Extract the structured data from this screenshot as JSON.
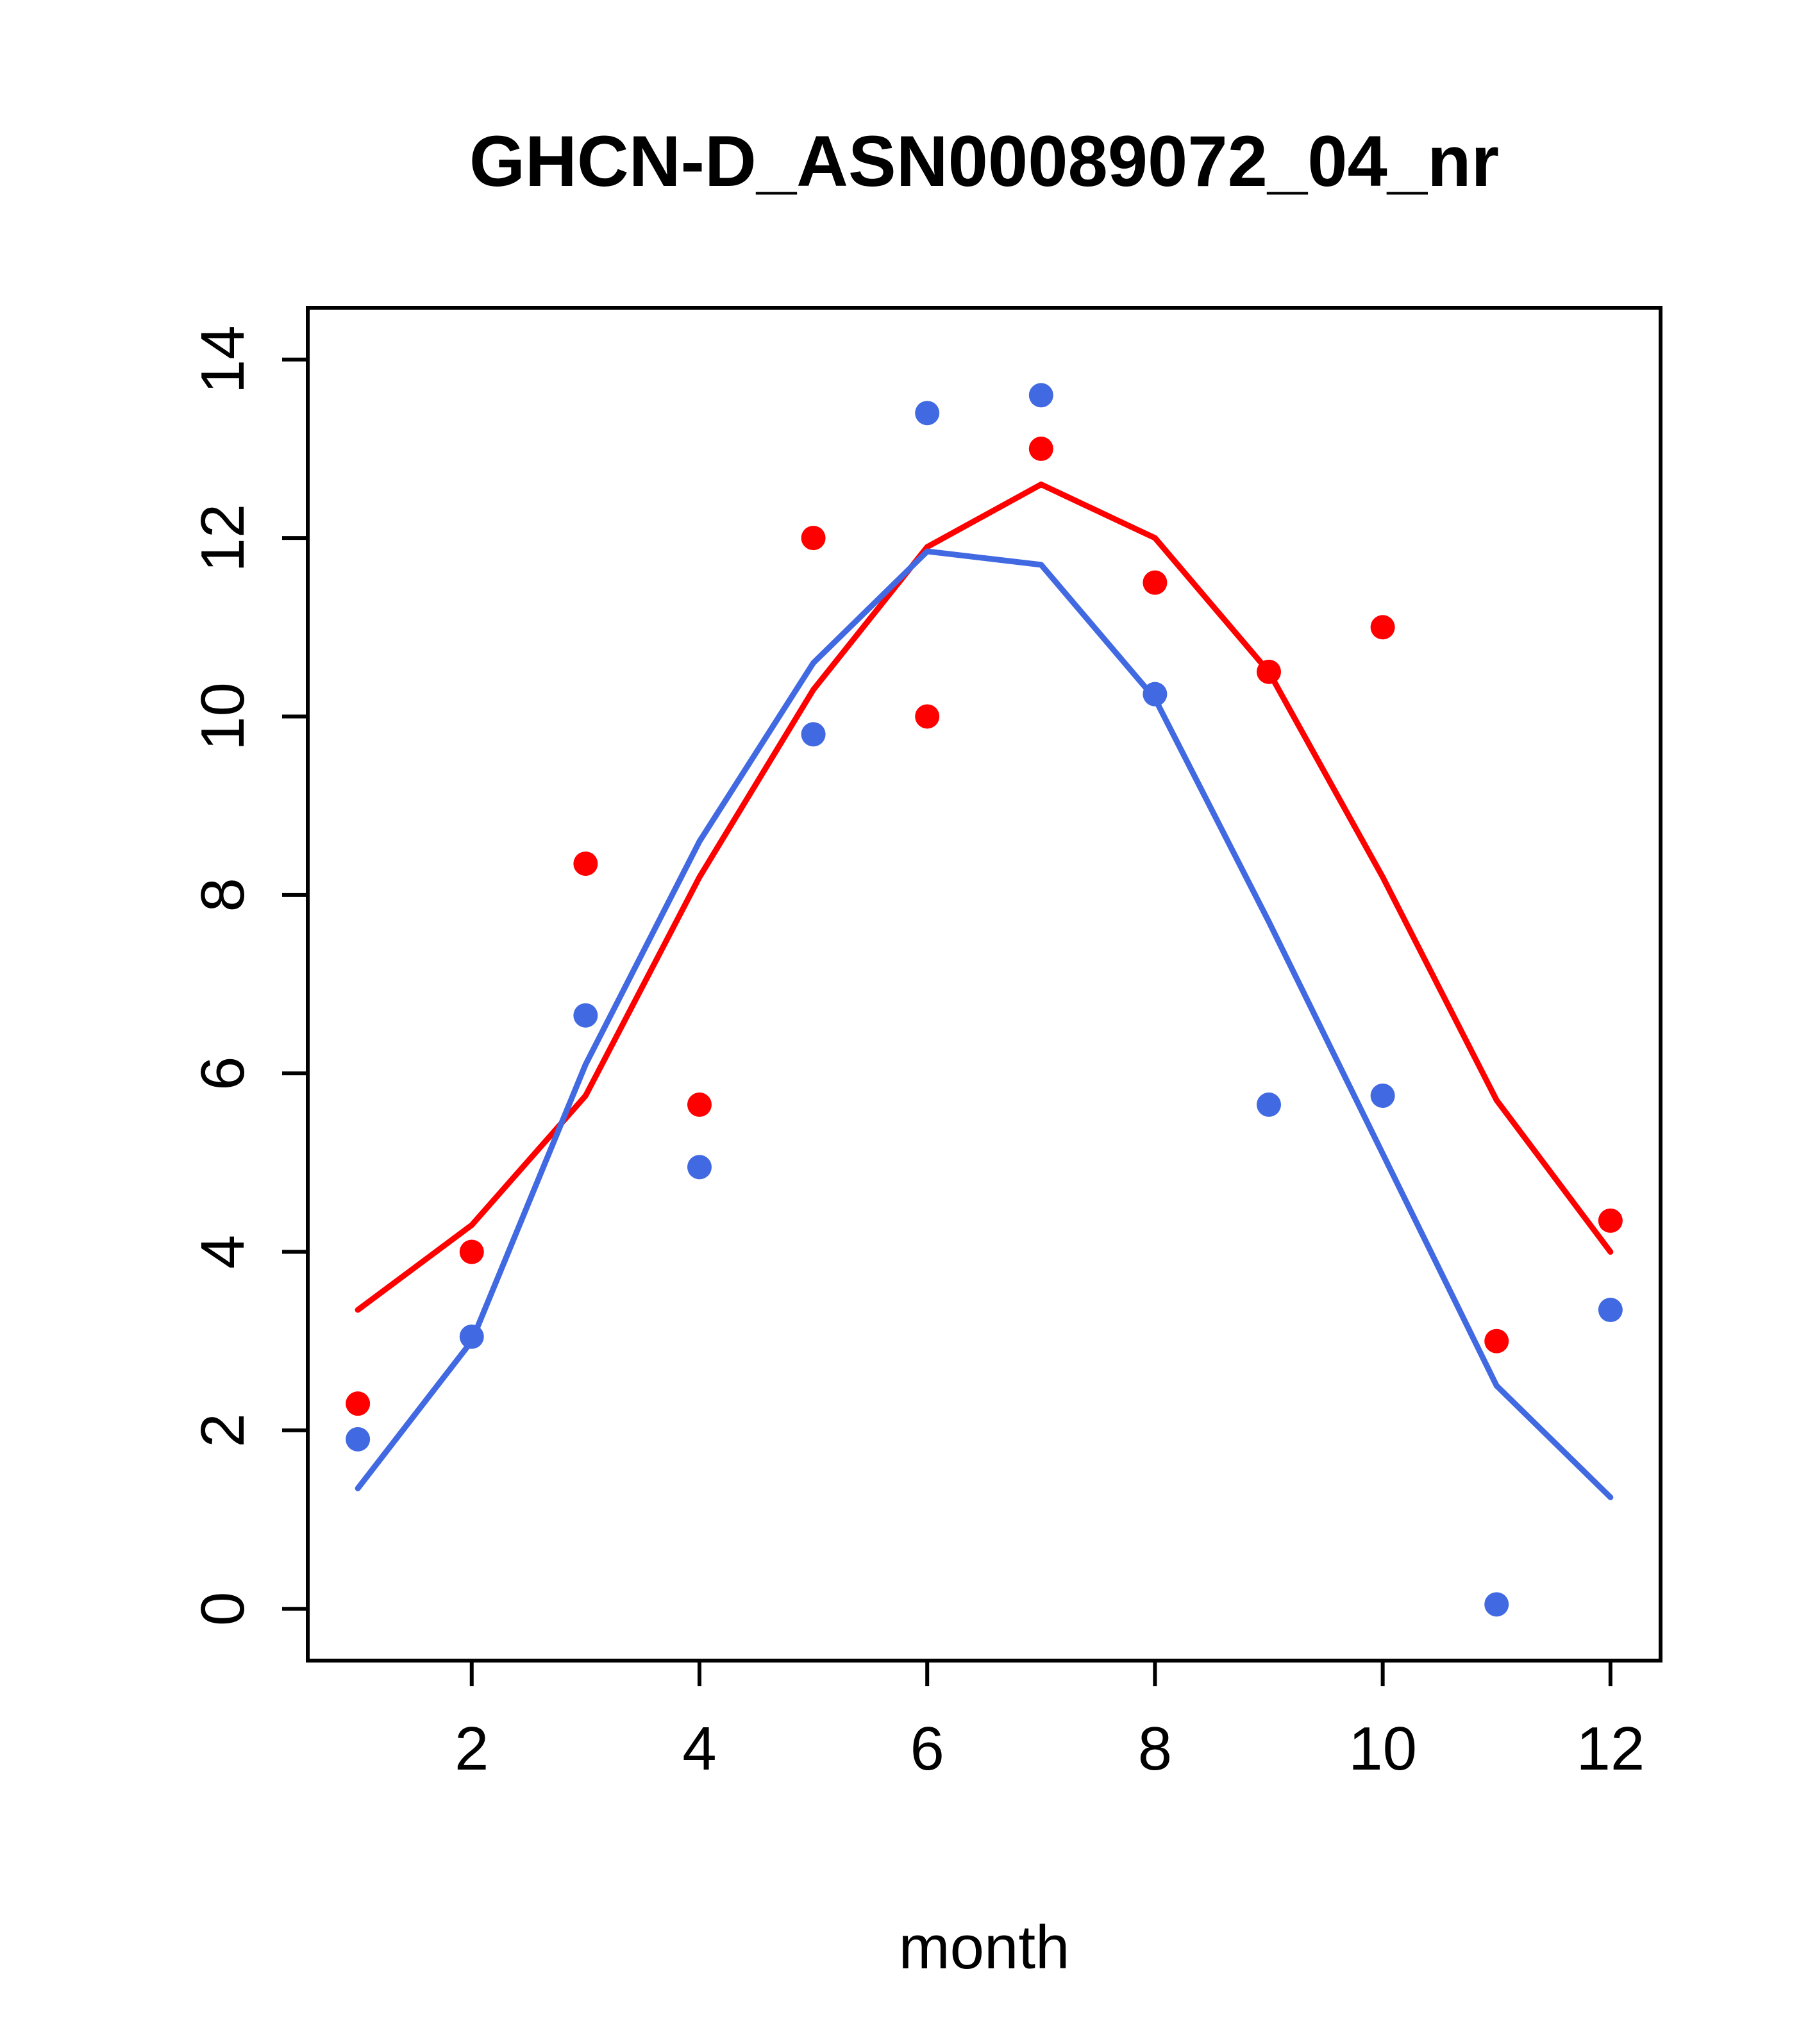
{
  "chart_data": {
    "type": "scatter",
    "title": "GHCN-D_ASN00089072_04_nr",
    "xlabel": "month",
    "ylabel": "",
    "xlim": [
      0.56,
      12.44
    ],
    "ylim": [
      -0.58,
      14.58
    ],
    "xticks": [
      2,
      4,
      6,
      8,
      10,
      12
    ],
    "yticks": [
      0,
      2,
      4,
      6,
      8,
      10,
      12,
      14
    ],
    "grid": false,
    "legend": "none",
    "x": [
      1,
      2,
      3,
      4,
      5,
      6,
      7,
      8,
      9,
      10,
      11,
      12
    ],
    "colors": {
      "red": "#FF0000",
      "blue": "#4169E1",
      "axis": "#000000",
      "background": "#FFFFFF"
    },
    "series": [
      {
        "name": "red-points",
        "type": "scatter",
        "color": "#FF0000",
        "values": [
          2.3,
          4.0,
          8.35,
          5.65,
          12.0,
          10.0,
          13.0,
          11.5,
          10.5,
          11.0,
          3.0,
          4.35
        ]
      },
      {
        "name": "blue-points",
        "type": "scatter",
        "color": "#4169E1",
        "values": [
          1.9,
          3.05,
          6.65,
          4.95,
          9.8,
          13.4,
          13.6,
          10.25,
          5.65,
          5.75,
          0.05,
          3.35
        ]
      },
      {
        "name": "red-fit-line",
        "type": "line",
        "color": "#FF0000",
        "values": [
          3.35,
          4.3,
          5.75,
          8.2,
          10.3,
          11.9,
          12.6,
          12.0,
          10.5,
          8.2,
          5.7,
          4.0
        ]
      },
      {
        "name": "blue-fit-line",
        "type": "line",
        "color": "#4169E1",
        "values": [
          1.35,
          3.0,
          6.1,
          8.6,
          10.6,
          11.85,
          11.7,
          10.2,
          7.7,
          5.1,
          2.5,
          1.25
        ]
      }
    ]
  }
}
